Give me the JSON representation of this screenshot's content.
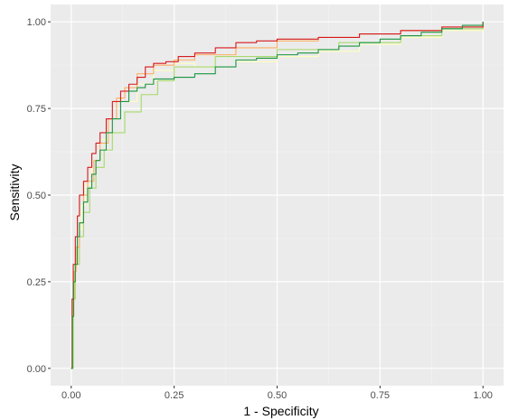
{
  "chart_data": {
    "type": "line",
    "xlabel": "1 - Specificity",
    "ylabel": "Sensitivity",
    "xlim": [
      -0.05,
      1.05
    ],
    "ylim": [
      -0.05,
      1.05
    ],
    "xticks": [
      0.0,
      0.25,
      0.5,
      0.75,
      1.0
    ],
    "yticks": [
      0.0,
      0.25,
      0.5,
      0.75,
      1.0
    ],
    "xtick_labels": [
      "0.00",
      "0.25",
      "0.50",
      "0.75",
      "1.00"
    ],
    "ytick_labels": [
      "0.00",
      "0.25",
      "0.50",
      "0.75",
      "1.00"
    ],
    "grid": true,
    "background": "#ebebeb",
    "series": [
      {
        "color": "#ffffbf",
        "x": [
          0.0,
          0.003,
          0.008,
          0.015,
          0.025,
          0.035,
          0.05,
          0.07,
          0.09,
          0.12,
          0.16,
          0.2,
          0.25,
          0.3,
          0.4,
          0.5,
          0.6,
          0.7,
          0.8,
          0.9,
          1.0
        ],
        "y": [
          0.0,
          0.2,
          0.3,
          0.4,
          0.47,
          0.53,
          0.6,
          0.66,
          0.72,
          0.77,
          0.82,
          0.86,
          0.88,
          0.87,
          0.885,
          0.9,
          0.915,
          0.935,
          0.955,
          0.975,
          1.0
        ]
      },
      {
        "color": "#a6d96a",
        "x": [
          0.0,
          0.005,
          0.01,
          0.02,
          0.03,
          0.045,
          0.06,
          0.08,
          0.1,
          0.13,
          0.17,
          0.21,
          0.25,
          0.35,
          0.5,
          0.65,
          0.8,
          0.9,
          1.0
        ],
        "y": [
          0.0,
          0.2,
          0.3,
          0.38,
          0.45,
          0.52,
          0.58,
          0.63,
          0.68,
          0.74,
          0.79,
          0.83,
          0.87,
          0.9,
          0.92,
          0.94,
          0.96,
          0.98,
          1.0
        ]
      },
      {
        "color": "#fdae61",
        "x": [
          0.0,
          0.003,
          0.007,
          0.012,
          0.02,
          0.03,
          0.04,
          0.055,
          0.07,
          0.09,
          0.11,
          0.13,
          0.16,
          0.2,
          0.25,
          0.3,
          0.4,
          0.5,
          0.6,
          0.7,
          0.8,
          0.9,
          1.0
        ],
        "y": [
          0.0,
          0.2,
          0.28,
          0.35,
          0.42,
          0.5,
          0.54,
          0.6,
          0.65,
          0.72,
          0.78,
          0.81,
          0.85,
          0.875,
          0.89,
          0.905,
          0.925,
          0.945,
          0.955,
          0.965,
          0.975,
          0.985,
          1.0
        ]
      },
      {
        "color": "#d7191c",
        "x": [
          0.0,
          0.002,
          0.005,
          0.01,
          0.015,
          0.02,
          0.03,
          0.04,
          0.05,
          0.06,
          0.07,
          0.085,
          0.1,
          0.12,
          0.14,
          0.16,
          0.18,
          0.2,
          0.23,
          0.26,
          0.3,
          0.35,
          0.4,
          0.45,
          0.5,
          0.6,
          0.7,
          0.8,
          0.9,
          1.0
        ],
        "y": [
          0.0,
          0.2,
          0.3,
          0.38,
          0.44,
          0.5,
          0.54,
          0.58,
          0.62,
          0.65,
          0.68,
          0.72,
          0.77,
          0.8,
          0.82,
          0.84,
          0.87,
          0.88,
          0.885,
          0.9,
          0.91,
          0.925,
          0.94,
          0.945,
          0.95,
          0.955,
          0.965,
          0.975,
          0.985,
          1.0
        ]
      },
      {
        "color": "#1a9641",
        "x": [
          0.0,
          0.003,
          0.006,
          0.01,
          0.015,
          0.02,
          0.03,
          0.04,
          0.05,
          0.06,
          0.07,
          0.085,
          0.1,
          0.12,
          0.14,
          0.16,
          0.18,
          0.2,
          0.25,
          0.3,
          0.35,
          0.4,
          0.45,
          0.5,
          0.55,
          0.6,
          0.65,
          0.7,
          0.75,
          0.8,
          0.85,
          0.9,
          0.95,
          1.0
        ],
        "y": [
          0.0,
          0.15,
          0.25,
          0.3,
          0.38,
          0.42,
          0.48,
          0.52,
          0.56,
          0.6,
          0.63,
          0.68,
          0.72,
          0.77,
          0.8,
          0.81,
          0.82,
          0.835,
          0.84,
          0.85,
          0.87,
          0.89,
          0.895,
          0.905,
          0.91,
          0.92,
          0.93,
          0.94,
          0.95,
          0.96,
          0.97,
          0.98,
          0.99,
          1.0
        ]
      }
    ]
  }
}
